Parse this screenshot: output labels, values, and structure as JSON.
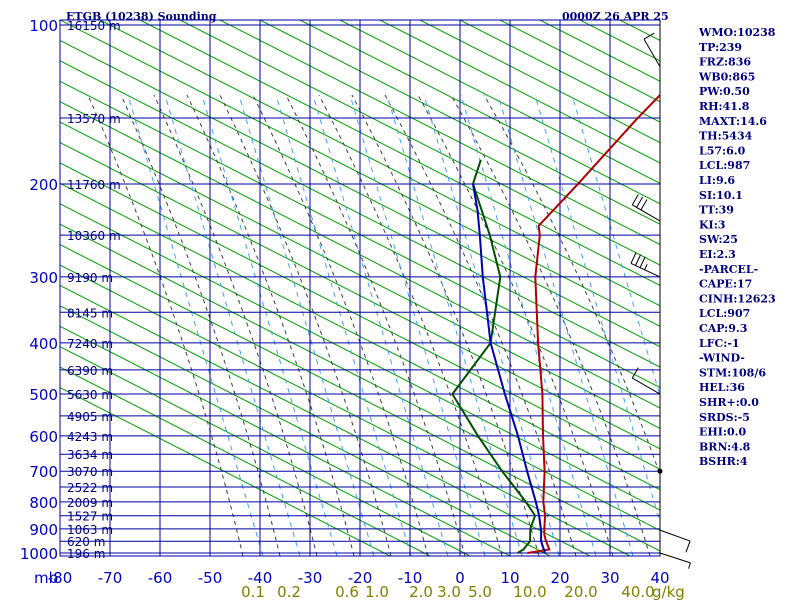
{
  "header": {
    "station": "ETGB (10238) Sounding",
    "time": "0000Z 26 APR 25"
  },
  "indices": [
    "WMO:10238",
    "TP:239",
    "FRZ:836",
    "WB0:865",
    "PW:0.50",
    "RH:41.8",
    "MAXT:14.6",
    "TH:5434",
    "L57:6.0",
    "LCL:987",
    "LI:9.6",
    "SI:10.1",
    "TT:39",
    "KI:3",
    "SW:25",
    "EI:2.3",
    "-PARCEL-",
    "CAPE:17",
    "CINH:12623",
    "LCL:907",
    "CAP:9.3",
    "LFC:-1",
    "-WIND-",
    "STM:108/6",
    "HEL:36",
    "SHR+:0.0",
    "SRDS:-5",
    "EHI:0.0",
    "BRN:4.8",
    "BSHR:4"
  ],
  "colors": {
    "background": "#ffffff",
    "grid": "#0000a0",
    "dry_adiabat": "#00a000",
    "moist_adiabat": "#404040",
    "mixing_ratio": "#40a0ff",
    "temperature": "#b00000",
    "dewpoint": "#005000",
    "parcel": "#0000b0",
    "labels": "#000080",
    "mixing_labels": "#808000"
  },
  "chart_data": {
    "type": "line",
    "title": "ETGB (10238) Sounding",
    "subtitle": "0000Z 26 APR 25",
    "y_scale": "log-pressure",
    "ylim_mb": [
      1000,
      100
    ],
    "xlim_C": [
      -80,
      0
    ],
    "skew": "skew-T",
    "grid": true,
    "pressure_unit": "mb",
    "mixing_ratio_unit": "g/kg",
    "pressure_ticks": [
      "100",
      "200",
      "300",
      "400",
      "500",
      "600",
      "700",
      "800",
      "900",
      "1000"
    ],
    "temperature_ticks": [
      "-80",
      "-70",
      "-60",
      "-50",
      "-40",
      "-30",
      "-20",
      "-10",
      "0",
      "10",
      "20",
      "30",
      "40"
    ],
    "mixing_ratio_ticks": [
      "0.1",
      "0.2",
      "0.6",
      "1.0",
      "2.0",
      "3.0",
      "5.0",
      "10.0",
      "20.0",
      "40.0"
    ],
    "height_labels": [
      {
        "p": 1000,
        "label": "196 m"
      },
      {
        "p": 950,
        "label": "620 m"
      },
      {
        "p": 900,
        "label": "1063 m"
      },
      {
        "p": 850,
        "label": "1527 m"
      },
      {
        "p": 800,
        "label": "2009 m"
      },
      {
        "p": 750,
        "label": "2522 m"
      },
      {
        "p": 700,
        "label": "3070 m"
      },
      {
        "p": 650,
        "label": "3634 m"
      },
      {
        "p": 600,
        "label": "4243 m"
      },
      {
        "p": 550,
        "label": "4905 m"
      },
      {
        "p": 500,
        "label": "5630 m"
      },
      {
        "p": 450,
        "label": "6390 m"
      },
      {
        "p": 400,
        "label": "7240 m"
      },
      {
        "p": 350,
        "label": "8145 m"
      },
      {
        "p": 300,
        "label": "9190 m"
      },
      {
        "p": 250,
        "label": "10360 m"
      },
      {
        "p": 200,
        "label": "11760 m"
      },
      {
        "p": 150,
        "label": "13570 m"
      },
      {
        "p": 100,
        "label": "16150 m"
      }
    ],
    "series": [
      {
        "key": "temperature",
        "points": [
          [
            1000,
            3.5
          ],
          [
            985,
            7.2
          ],
          [
            950,
            5.0
          ],
          [
            925,
            3.5
          ],
          [
            900,
            2.3
          ],
          [
            850,
            0.0
          ],
          [
            800,
            -3.0
          ],
          [
            700,
            -8.5
          ],
          [
            600,
            -15.5
          ],
          [
            500,
            -23.5
          ],
          [
            400,
            -34.0
          ],
          [
            300,
            -47.0
          ],
          [
            250,
            -54.0
          ],
          [
            240,
            -56.0
          ],
          [
            200,
            -56.0
          ],
          [
            150,
            -56.5
          ],
          [
            100,
            -56.0
          ]
        ]
      },
      {
        "key": "dewpoint",
        "points": [
          [
            1000,
            1.5
          ],
          [
            985,
            2.0
          ],
          [
            950,
            1.8
          ],
          [
            900,
            -0.5
          ],
          [
            850,
            -2.0
          ],
          [
            800,
            -6.5
          ],
          [
            700,
            -17.0
          ],
          [
            600,
            -28.5
          ],
          [
            500,
            -41.5
          ],
          [
            400,
            -43.5
          ],
          [
            300,
            -54.0
          ],
          [
            250,
            -64.0
          ],
          [
            200,
            -77.0
          ],
          [
            180,
            -80.0
          ]
        ]
      },
      {
        "key": "parcel",
        "points": [
          [
            1000,
            7.0
          ],
          [
            950,
            4.0
          ],
          [
            907,
            2.0
          ],
          [
            850,
            -1.2
          ],
          [
            800,
            -4.5
          ],
          [
            700,
            -12.0
          ],
          [
            600,
            -20.5
          ],
          [
            500,
            -31.0
          ],
          [
            400,
            -43.5
          ],
          [
            300,
            -57.5
          ],
          [
            250,
            -66.0
          ],
          [
            225,
            -71.0
          ],
          [
            200,
            -77.0
          ]
        ]
      }
    ],
    "wind_barbs": [
      {
        "p": 1000,
        "dir": 108,
        "kt": 5
      },
      {
        "p": 905,
        "dir": 110,
        "kt": 10
      },
      {
        "p": 700,
        "dir": 0,
        "kt": 0
      },
      {
        "p": 500,
        "dir": 300,
        "kt": 10
      },
      {
        "p": 300,
        "dir": 295,
        "kt": 35
      },
      {
        "p": 235,
        "dir": 300,
        "kt": 30
      },
      {
        "p": 120,
        "dir": 330,
        "kt": 10
      }
    ]
  }
}
